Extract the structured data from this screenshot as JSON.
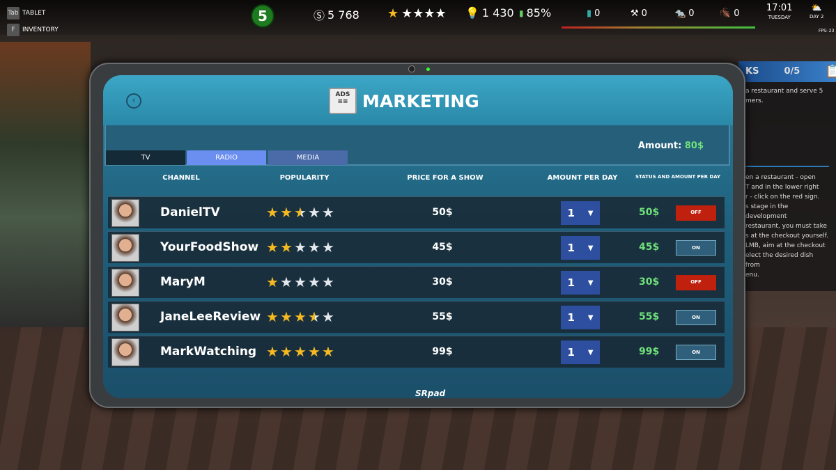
{
  "hud": {
    "tablet_key": "Tab",
    "tablet_label": "TABLET",
    "inventory_key": "F",
    "inventory_label": "INVENTORY",
    "level": "5",
    "money": "5 768",
    "rating_stars": 1,
    "ideas": "1 430",
    "satisfaction": "85%",
    "trash": "0",
    "repairs": "0",
    "rats": "0",
    "cockroaches": "0",
    "time": "17:01",
    "weekday": "TUESDAY",
    "day": "DAY 2",
    "fps": "FPS: 23"
  },
  "tasks": {
    "title_partial": "KS",
    "progress": "0/5",
    "goal": "a restaurant and serve 5 mers.",
    "hint_lines": [
      "en a restaurant - open",
      "T and in the lower right",
      "r - click on the red sign.",
      "s stage in the development",
      "restaurant, you must take",
      "s at the checkout yourself.",
      "LMB, aim at the checkout",
      "elect the desired dish from",
      "enu."
    ]
  },
  "tablet": {
    "title": "MARKETING",
    "ads_icon_text": "ADS",
    "brand": "SRpad",
    "tabs": [
      {
        "label": "TV"
      },
      {
        "label": "RADIO"
      },
      {
        "label": "MEDIA"
      }
    ],
    "active_tab": "RADIO",
    "amount_label": "Amount:",
    "amount_value": "80$",
    "columns": {
      "channel": "CHANNEL",
      "popularity": "POPULARITY",
      "price": "PRICE FOR A SHOW",
      "per_day": "AMOUNT PER DAY",
      "status": "STATUS AND AMOUNT PER DAY"
    },
    "rows": [
      {
        "name": "DanielTV",
        "rating": 2.5,
        "price": "50$",
        "amount": "1",
        "daily": "50$",
        "status": "OFF"
      },
      {
        "name": "YourFoodShow",
        "rating": 2,
        "price": "45$",
        "amount": "1",
        "daily": "45$",
        "status": "ON"
      },
      {
        "name": "MaryM",
        "rating": 1,
        "price": "30$",
        "amount": "1",
        "daily": "30$",
        "status": "OFF"
      },
      {
        "name": "JaneLeeReview",
        "rating": 3.5,
        "price": "55$",
        "amount": "1",
        "daily": "55$",
        "status": "ON"
      },
      {
        "name": "MarkWatching",
        "rating": 5,
        "price": "99$",
        "amount": "1",
        "daily": "99$",
        "status": "ON"
      }
    ]
  },
  "colors": {
    "star_gold": "#f5b921",
    "star_empty": "#e4e8ee",
    "on_green": "#6fe07a",
    "off_red": "#c0200e",
    "tab_active": "#6b8ff0"
  }
}
